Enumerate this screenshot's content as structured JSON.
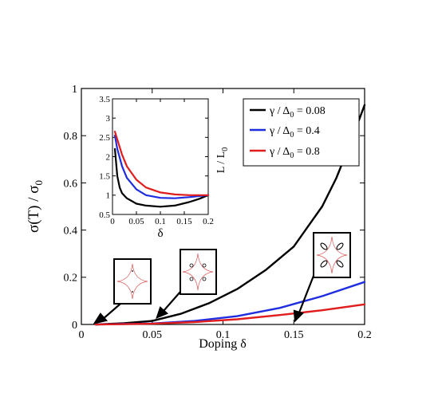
{
  "chart_data": [
    {
      "type": "line",
      "xlabel": "Doping δ",
      "ylabel": "σ(T) / σ0",
      "xlim": [
        0,
        0.2
      ],
      "ylim": [
        0,
        1
      ],
      "xticks": [
        "0",
        "0.05",
        "0.1",
        "0.15",
        "0.2"
      ],
      "yticks": [
        "0",
        "0.2",
        "0.4",
        "0.6",
        "0.8",
        "1"
      ],
      "legend_placement": "top-right",
      "series": [
        {
          "name": "γ / Δ0 = 0.08",
          "color": "#000000",
          "x": [
            0.01,
            0.03,
            0.05,
            0.07,
            0.09,
            0.11,
            0.13,
            0.15,
            0.17,
            0.18,
            0.19,
            0.2
          ],
          "y": [
            0.0,
            0.005,
            0.015,
            0.045,
            0.09,
            0.15,
            0.23,
            0.33,
            0.5,
            0.62,
            0.77,
            0.93
          ]
        },
        {
          "name": "γ / Δ0 = 0.4",
          "color": "#1f2de0",
          "x": [
            0.01,
            0.05,
            0.08,
            0.11,
            0.14,
            0.17,
            0.2
          ],
          "y": [
            0.0,
            0.004,
            0.015,
            0.035,
            0.07,
            0.12,
            0.18
          ]
        },
        {
          "name": "γ / Δ0 = 0.8",
          "color": "#e01c1c",
          "x": [
            0.01,
            0.05,
            0.08,
            0.11,
            0.14,
            0.17,
            0.2
          ],
          "y": [
            0.0,
            0.003,
            0.01,
            0.022,
            0.04,
            0.06,
            0.085
          ]
        }
      ],
      "annotations": [
        {
          "kind": "fermi-surface-inset",
          "arrow_to": [
            0.008,
            0.0
          ]
        },
        {
          "kind": "fermi-surface-inset",
          "arrow_to": [
            0.05,
            0.0
          ]
        },
        {
          "kind": "fermi-surface-inset",
          "arrow_to": [
            0.15,
            0.02
          ]
        }
      ]
    },
    {
      "type": "line",
      "xlabel": "δ",
      "ylabel": "L / L0",
      "xlim": [
        0,
        0.2
      ],
      "ylim": [
        0.5,
        3.5
      ],
      "xticks": [
        "0",
        "0.05",
        "0.1",
        "0.15",
        "0.2"
      ],
      "yticks": [
        "0.5",
        "1",
        "1.5",
        "2",
        "2.5",
        "3",
        "3.5"
      ],
      "series": [
        {
          "color": "#000000",
          "x": [
            0.005,
            0.01,
            0.015,
            0.02,
            0.03,
            0.05,
            0.07,
            0.1,
            0.13,
            0.16,
            0.18,
            0.2
          ],
          "y": [
            2.2,
            1.5,
            1.2,
            1.05,
            0.92,
            0.78,
            0.73,
            0.7,
            0.73,
            0.82,
            0.9,
            1.0
          ]
        },
        {
          "color": "#1f2de0",
          "x": [
            0.005,
            0.01,
            0.02,
            0.03,
            0.05,
            0.07,
            0.1,
            0.13,
            0.16,
            0.2
          ],
          "y": [
            2.55,
            2.2,
            1.75,
            1.45,
            1.15,
            1.0,
            0.93,
            0.92,
            0.95,
            1.0
          ]
        },
        {
          "color": "#e01c1c",
          "x": [
            0.005,
            0.01,
            0.02,
            0.03,
            0.05,
            0.07,
            0.1,
            0.13,
            0.16,
            0.2
          ],
          "y": [
            2.65,
            2.45,
            2.05,
            1.75,
            1.4,
            1.2,
            1.07,
            1.02,
            1.0,
            1.0
          ]
        }
      ]
    }
  ],
  "labels": {
    "main_xlabel_prefix": "Doping ",
    "main_xlabel_delta": "δ",
    "main_ylabel_num": "σ(T) / σ",
    "main_ylabel_sub": "0",
    "inset_xlabel": "δ",
    "inset_ylabel_num": "L / L",
    "inset_ylabel_sub": "0",
    "legend": [
      {
        "prefix": "γ / Δ",
        "sub": "0",
        "suffix": " = 0.08"
      },
      {
        "prefix": "γ / Δ",
        "sub": "0",
        "suffix": " = 0.4"
      },
      {
        "prefix": "γ / Δ",
        "sub": "0",
        "suffix": " = 0.8"
      }
    ]
  }
}
